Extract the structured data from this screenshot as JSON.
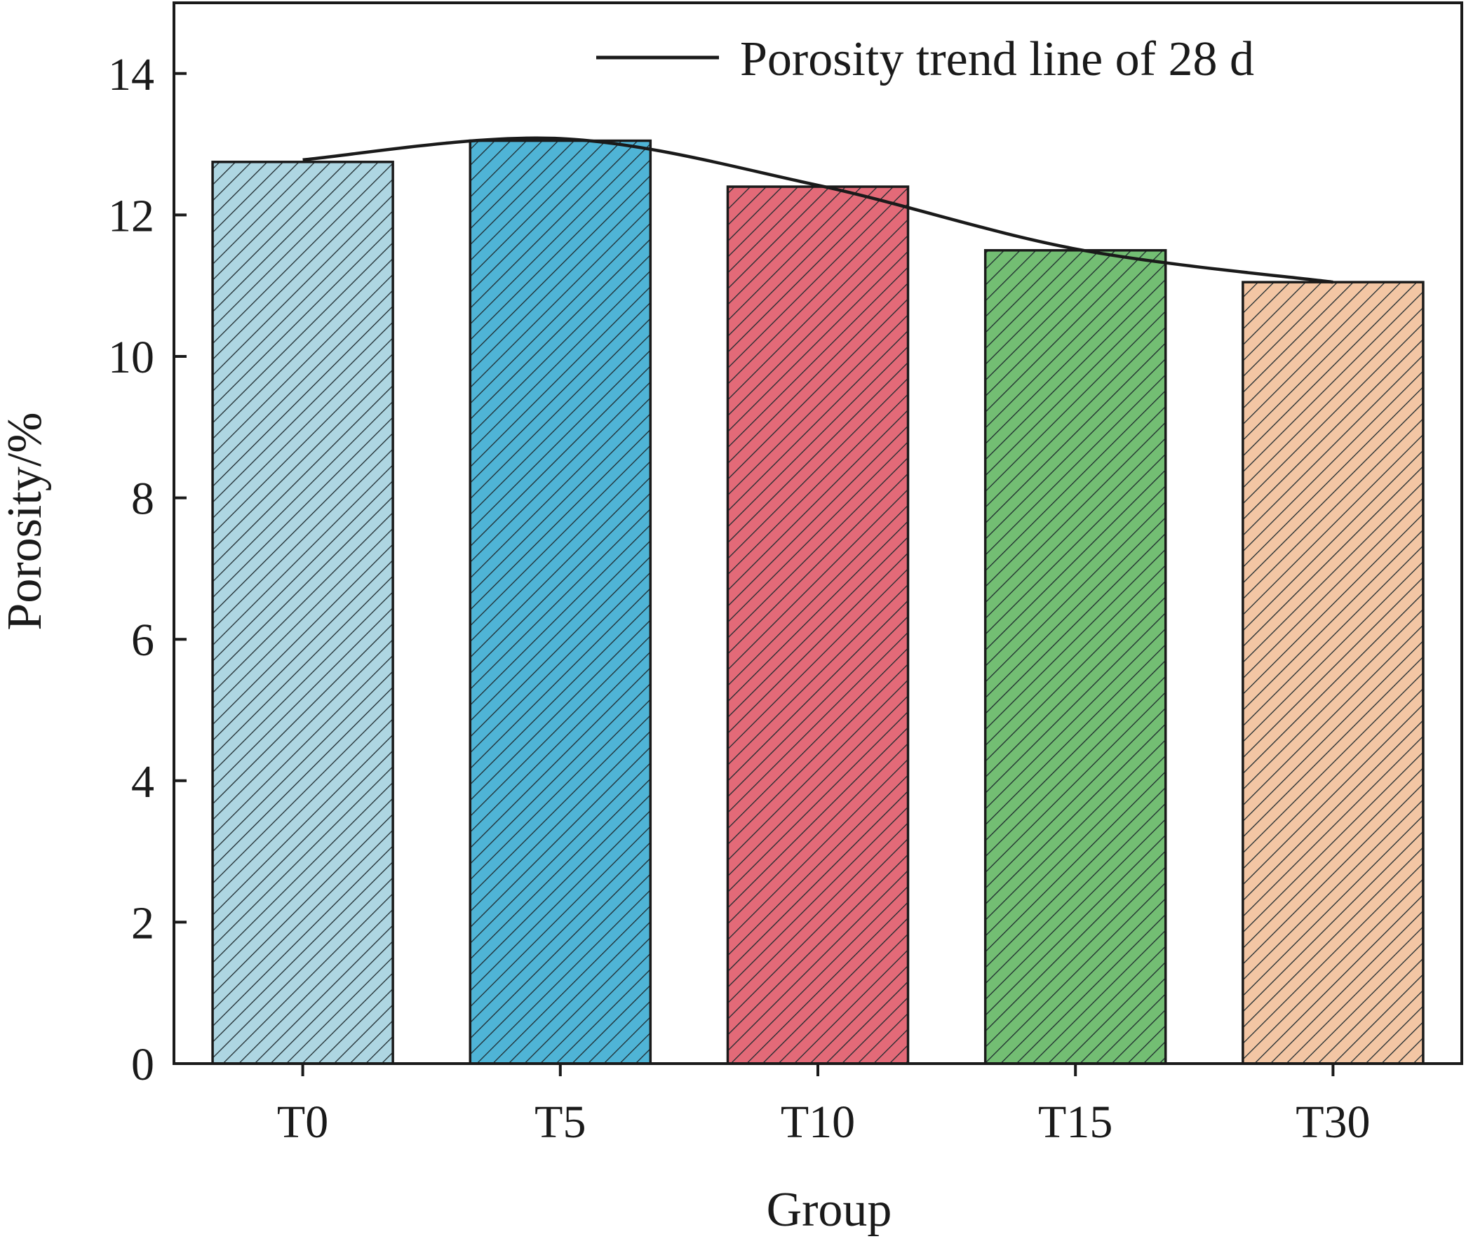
{
  "chart_data": {
    "type": "bar",
    "categories": [
      "T0",
      "T5",
      "T10",
      "T15",
      "T30"
    ],
    "values": [
      12.75,
      13.05,
      12.4,
      11.5,
      11.05
    ],
    "bar_colors": [
      "#aed6e2",
      "#4fb4d6",
      "#e36a78",
      "#73be73",
      "#f3c6a4"
    ],
    "hatch": "diagonal",
    "series": [
      {
        "name": "Porosity trend line of 28 d",
        "type": "line",
        "style": "smooth",
        "color": "#1a1a1a",
        "values": [
          12.78,
          13.08,
          12.42,
          11.52,
          11.05
        ]
      }
    ],
    "xlabel": "Group",
    "ylabel": "Porosity/%",
    "ylim": [
      0,
      15
    ],
    "yticks": [
      0,
      2,
      4,
      6,
      8,
      10,
      12,
      14
    ],
    "legend_position": "top-right",
    "grid": false
  }
}
